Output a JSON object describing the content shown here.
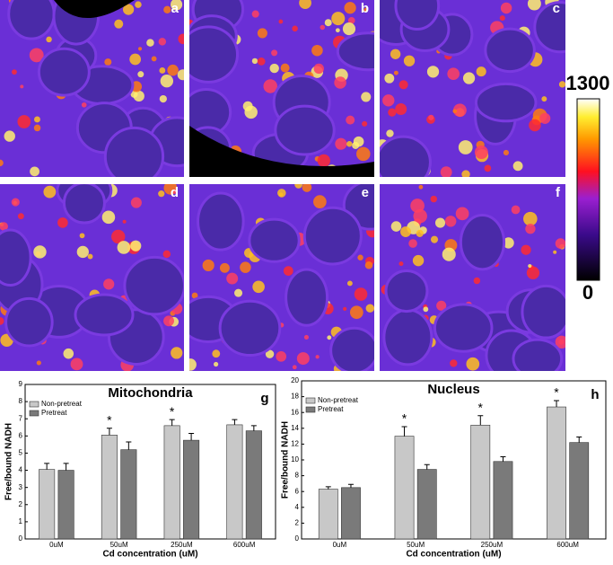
{
  "images": {
    "panels": [
      "a",
      "b",
      "c",
      "d",
      "e",
      "f"
    ],
    "colorbar": {
      "ticks": [
        0,
        1300
      ]
    }
  },
  "chart_data": [
    {
      "type": "bar",
      "title": "Mitochondria",
      "panel": "g",
      "x_label": "Cd concentration (uM)",
      "y_label": "Free/bound NADH",
      "categories": [
        "0uM",
        "50uM",
        "250uM",
        "600uM"
      ],
      "series": [
        {
          "name": "Non-pretreat",
          "color": "#c8c8c8",
          "values": [
            4.05,
            6.05,
            6.6,
            6.65
          ],
          "errors": [
            0.35,
            0.4,
            0.35,
            0.3
          ]
        },
        {
          "name": "Pretreat",
          "color": "#7a7a7a",
          "values": [
            4.0,
            5.2,
            5.75,
            6.3
          ],
          "errors": [
            0.4,
            0.45,
            0.4,
            0.3
          ]
        }
      ],
      "markers": [
        null,
        "*",
        "*",
        null
      ],
      "ylim": [
        0,
        9
      ],
      "yticks": [
        0,
        1,
        2,
        3,
        4,
        5,
        6,
        7,
        8,
        9
      ],
      "legend": "upper left"
    },
    {
      "type": "bar",
      "title": "Nucleus",
      "panel": "h",
      "x_label": "Cd concentration (uM)",
      "y_label": "Free/bound NADH",
      "categories": [
        "0uM",
        "50uM",
        "250uM",
        "600uM"
      ],
      "series": [
        {
          "name": "Non-pretreat",
          "color": "#c8c8c8",
          "values": [
            6.3,
            13.0,
            14.4,
            16.7
          ],
          "errors": [
            0.3,
            1.2,
            1.2,
            0.8
          ]
        },
        {
          "name": "Pretreat",
          "color": "#7a7a7a",
          "values": [
            6.5,
            8.8,
            9.8,
            12.2
          ],
          "errors": [
            0.4,
            0.6,
            0.6,
            0.7
          ]
        }
      ],
      "markers": [
        null,
        "*",
        "*",
        "*"
      ],
      "ylim": [
        0,
        20
      ],
      "yticks": [
        0,
        2,
        4,
        6,
        8,
        10,
        12,
        14,
        16,
        18,
        20
      ],
      "legend": "upper left"
    }
  ]
}
